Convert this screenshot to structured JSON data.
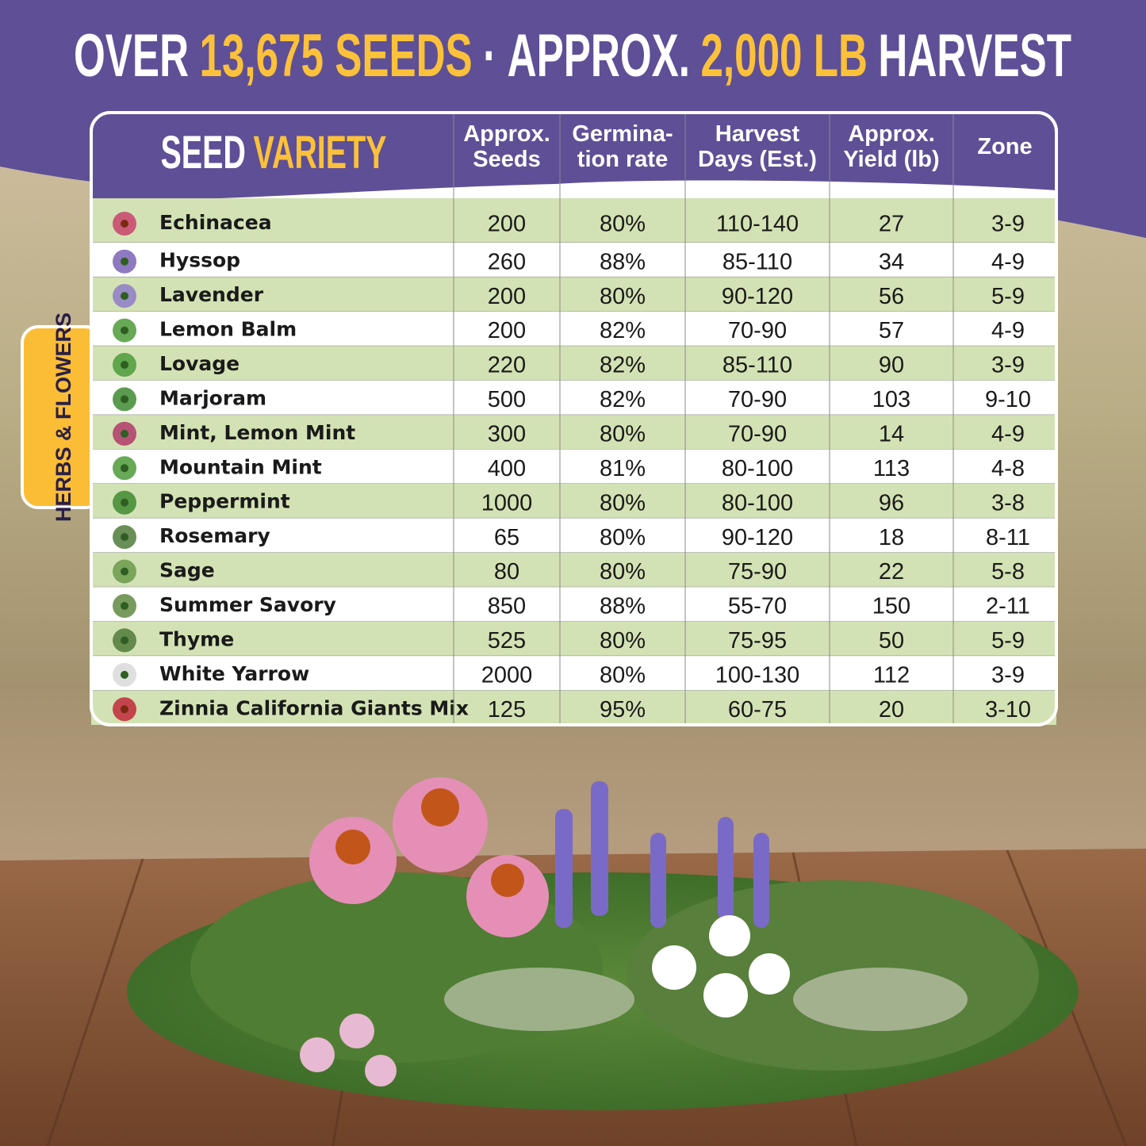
{
  "title": {
    "segments": [
      {
        "text": "OVER",
        "highlight": false
      },
      {
        "text": "13,675 SEEDS",
        "highlight": true
      },
      {
        "text": "·",
        "highlight": false
      },
      {
        "text": "APPROX.",
        "highlight": false
      },
      {
        "text": "2,000 LB",
        "highlight": true
      },
      {
        "text": "HARVEST",
        "highlight": false
      }
    ]
  },
  "category_tab": "HERBS & FLOWERS",
  "table": {
    "header": {
      "variety": [
        "SEED",
        "VARIETY"
      ],
      "columns": [
        [
          "Approx.",
          "Seeds"
        ],
        [
          "Germina-",
          "tion rate"
        ],
        [
          "Harvest",
          "Days (Est.)"
        ],
        [
          "Approx.",
          "Yield (lb)"
        ],
        [
          "Zone"
        ]
      ]
    },
    "rows": [
      [
        "Echinacea",
        "200",
        "80%",
        "110-140",
        "27",
        "3-9"
      ],
      [
        "Hyssop",
        "260",
        "88%",
        "85-110",
        "34",
        "4-9"
      ],
      [
        "Lavender",
        "200",
        "80%",
        "90-120",
        "56",
        "5-9"
      ],
      [
        "Lemon Balm",
        "200",
        "82%",
        "70-90",
        "57",
        "4-9"
      ],
      [
        "Lovage",
        "220",
        "82%",
        "85-110",
        "90",
        "3-9"
      ],
      [
        "Marjoram",
        "500",
        "82%",
        "70-90",
        "103",
        "9-10"
      ],
      [
        "Mint, Lemon Mint",
        "300",
        "80%",
        "70-90",
        "14",
        "4-9"
      ],
      [
        "Mountain Mint",
        "400",
        "81%",
        "80-100",
        "113",
        "4-8"
      ],
      [
        "Peppermint",
        "1000",
        "80%",
        "80-100",
        "96",
        "3-8"
      ],
      [
        "Rosemary",
        "65",
        "80%",
        "90-120",
        "18",
        "8-11"
      ],
      [
        "Sage",
        "80",
        "80%",
        "75-90",
        "22",
        "5-8"
      ],
      [
        "Summer Savory",
        "850",
        "88%",
        "55-70",
        "150",
        "2-11"
      ],
      [
        "Thyme",
        "525",
        "80%",
        "75-95",
        "50",
        "5-9"
      ],
      [
        "White Yarrow",
        "2000",
        "80%",
        "100-130",
        "112",
        "3-9"
      ],
      [
        "Zinnia California Giants Mix",
        "125",
        "95%",
        "60-75",
        "20",
        "3-10"
      ]
    ]
  }
}
